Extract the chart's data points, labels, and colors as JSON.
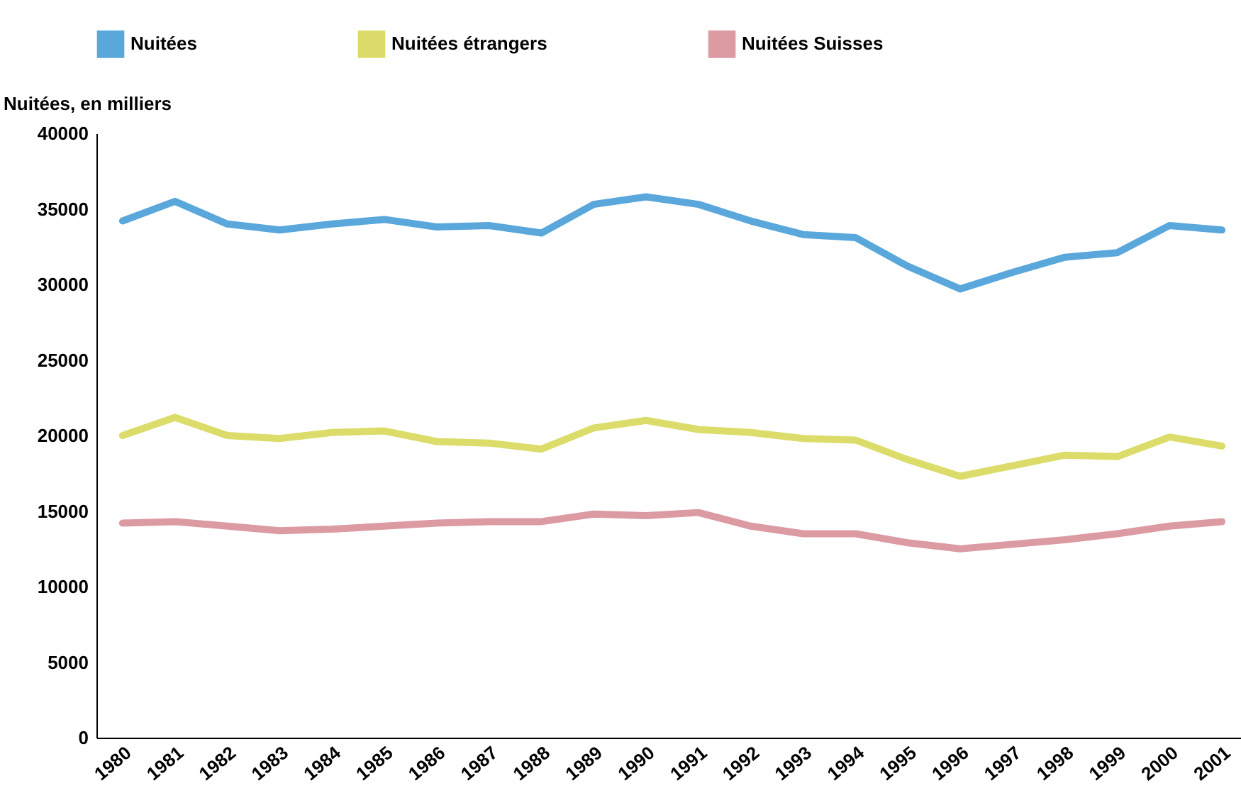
{
  "chart_data": {
    "type": "line",
    "ylabel": "Nuitées, en milliers",
    "categories": [
      "1980",
      "1981",
      "1982",
      "1983",
      "1984",
      "1985",
      "1986",
      "1987",
      "1988",
      "1989",
      "1990",
      "1991",
      "1992",
      "1993",
      "1994",
      "1995",
      "1996",
      "1997",
      "1998",
      "1999",
      "2000",
      "2001"
    ],
    "series": [
      {
        "name": "Nuitées",
        "color": "#5aa7dc",
        "values": [
          34200,
          35500,
          34000,
          33600,
          34000,
          34300,
          33800,
          33900,
          33400,
          35300,
          35800,
          35300,
          34200,
          33300,
          33100,
          31200,
          29700,
          30800,
          31800,
          32100,
          33900,
          33600
        ]
      },
      {
        "name": "Nuitées étrangers",
        "color": "#dcdc6a",
        "values": [
          20000,
          21200,
          20000,
          19800,
          20200,
          20300,
          19600,
          19500,
          19100,
          20500,
          21000,
          20400,
          20200,
          19800,
          19700,
          18400,
          17300,
          18000,
          18700,
          18600,
          19900,
          19300
        ]
      },
      {
        "name": "Nuitées Suisses",
        "color": "#dc9ba3",
        "values": [
          14200,
          14300,
          14000,
          13700,
          13800,
          14000,
          14200,
          14300,
          14300,
          14800,
          14700,
          14900,
          14000,
          13500,
          13500,
          12900,
          12500,
          12800,
          13100,
          13500,
          14000,
          14300
        ]
      }
    ],
    "ylim": [
      0,
      40000
    ],
    "yticks": [
      0,
      5000,
      10000,
      15000,
      20000,
      25000,
      30000,
      35000,
      40000
    ],
    "grid": false,
    "legend": "top",
    "marker": "none",
    "line_style": "solid"
  }
}
